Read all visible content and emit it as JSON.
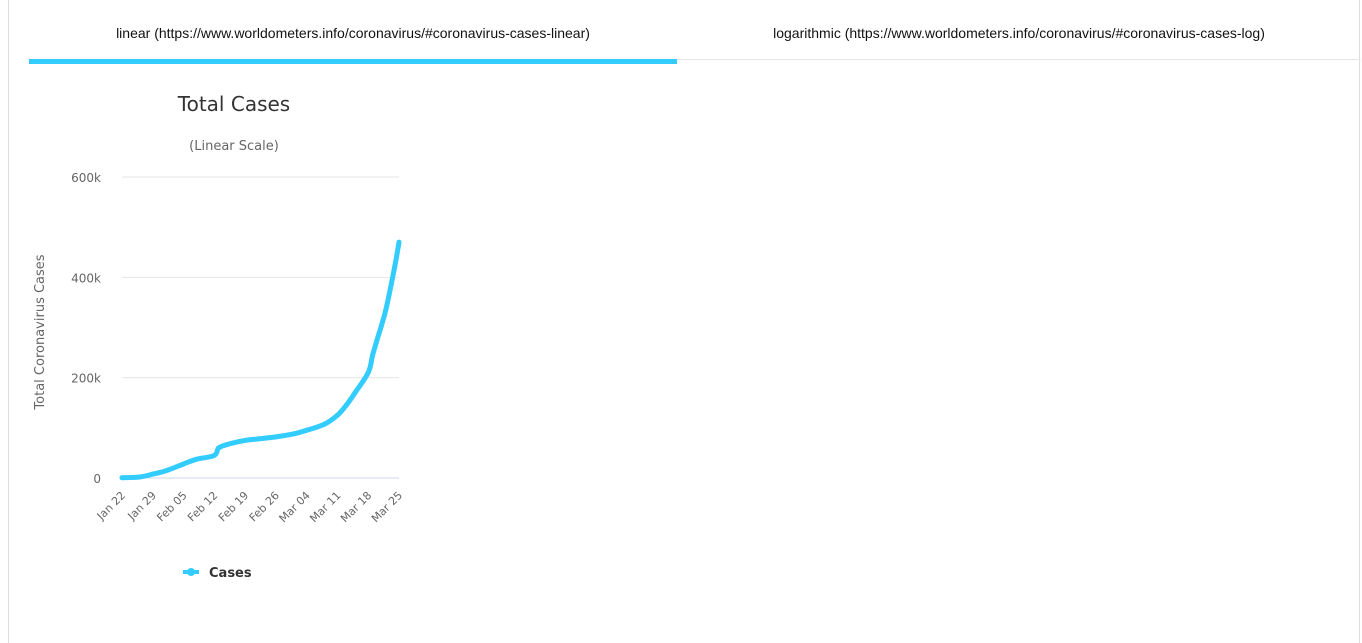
{
  "tabs": [
    {
      "label": "linear (https://www.worldometers.info/coronavirus/#coronavirus-cases-linear)",
      "active": true
    },
    {
      "label": "logarithmic (https://www.worldometers.info/coronavirus/#coronavirus-cases-log)",
      "active": false
    }
  ],
  "colors": {
    "series": "#33ccff",
    "active_tab": "#33ccff"
  },
  "chart_data": {
    "type": "line",
    "title": "Total Cases",
    "subtitle": "(Linear Scale)",
    "ylabel": "Total Coronavirus Cases",
    "xlabel": "",
    "ylim": [
      0,
      600000
    ],
    "yticks": [
      0,
      200000,
      400000,
      600000
    ],
    "ytick_labels": [
      "0",
      "200k",
      "400k",
      "600k"
    ],
    "xtick_labels": [
      "Jan 22",
      "Jan 29",
      "Feb 05",
      "Feb 12",
      "Feb 19",
      "Feb 26",
      "Mar 04",
      "Mar 11",
      "Mar 18",
      "Mar 25"
    ],
    "legend": {
      "position": "bottom",
      "entries": [
        "Cases"
      ]
    },
    "grid": true,
    "series": [
      {
        "name": "Cases",
        "color": "#33ccff",
        "x": [
          "Jan 22",
          "Jan 26",
          "Jan 29",
          "Feb 01",
          "Feb 05",
          "Feb 08",
          "Feb 12",
          "Feb 13",
          "Feb 15",
          "Feb 19",
          "Feb 22",
          "Feb 26",
          "Mar 01",
          "Mar 04",
          "Mar 08",
          "Mar 11",
          "Mar 13",
          "Mar 15",
          "Mar 18",
          "Mar 19",
          "Mar 20",
          "Mar 22",
          "Mar 24",
          "Mar 25"
        ],
        "values": [
          600,
          2000,
          7700,
          14500,
          28000,
          37500,
          45000,
          60000,
          67000,
          75000,
          78000,
          82000,
          88000,
          95000,
          107000,
          125000,
          145000,
          170000,
          210000,
          245000,
          275000,
          335000,
          420000,
          470000
        ]
      }
    ]
  }
}
